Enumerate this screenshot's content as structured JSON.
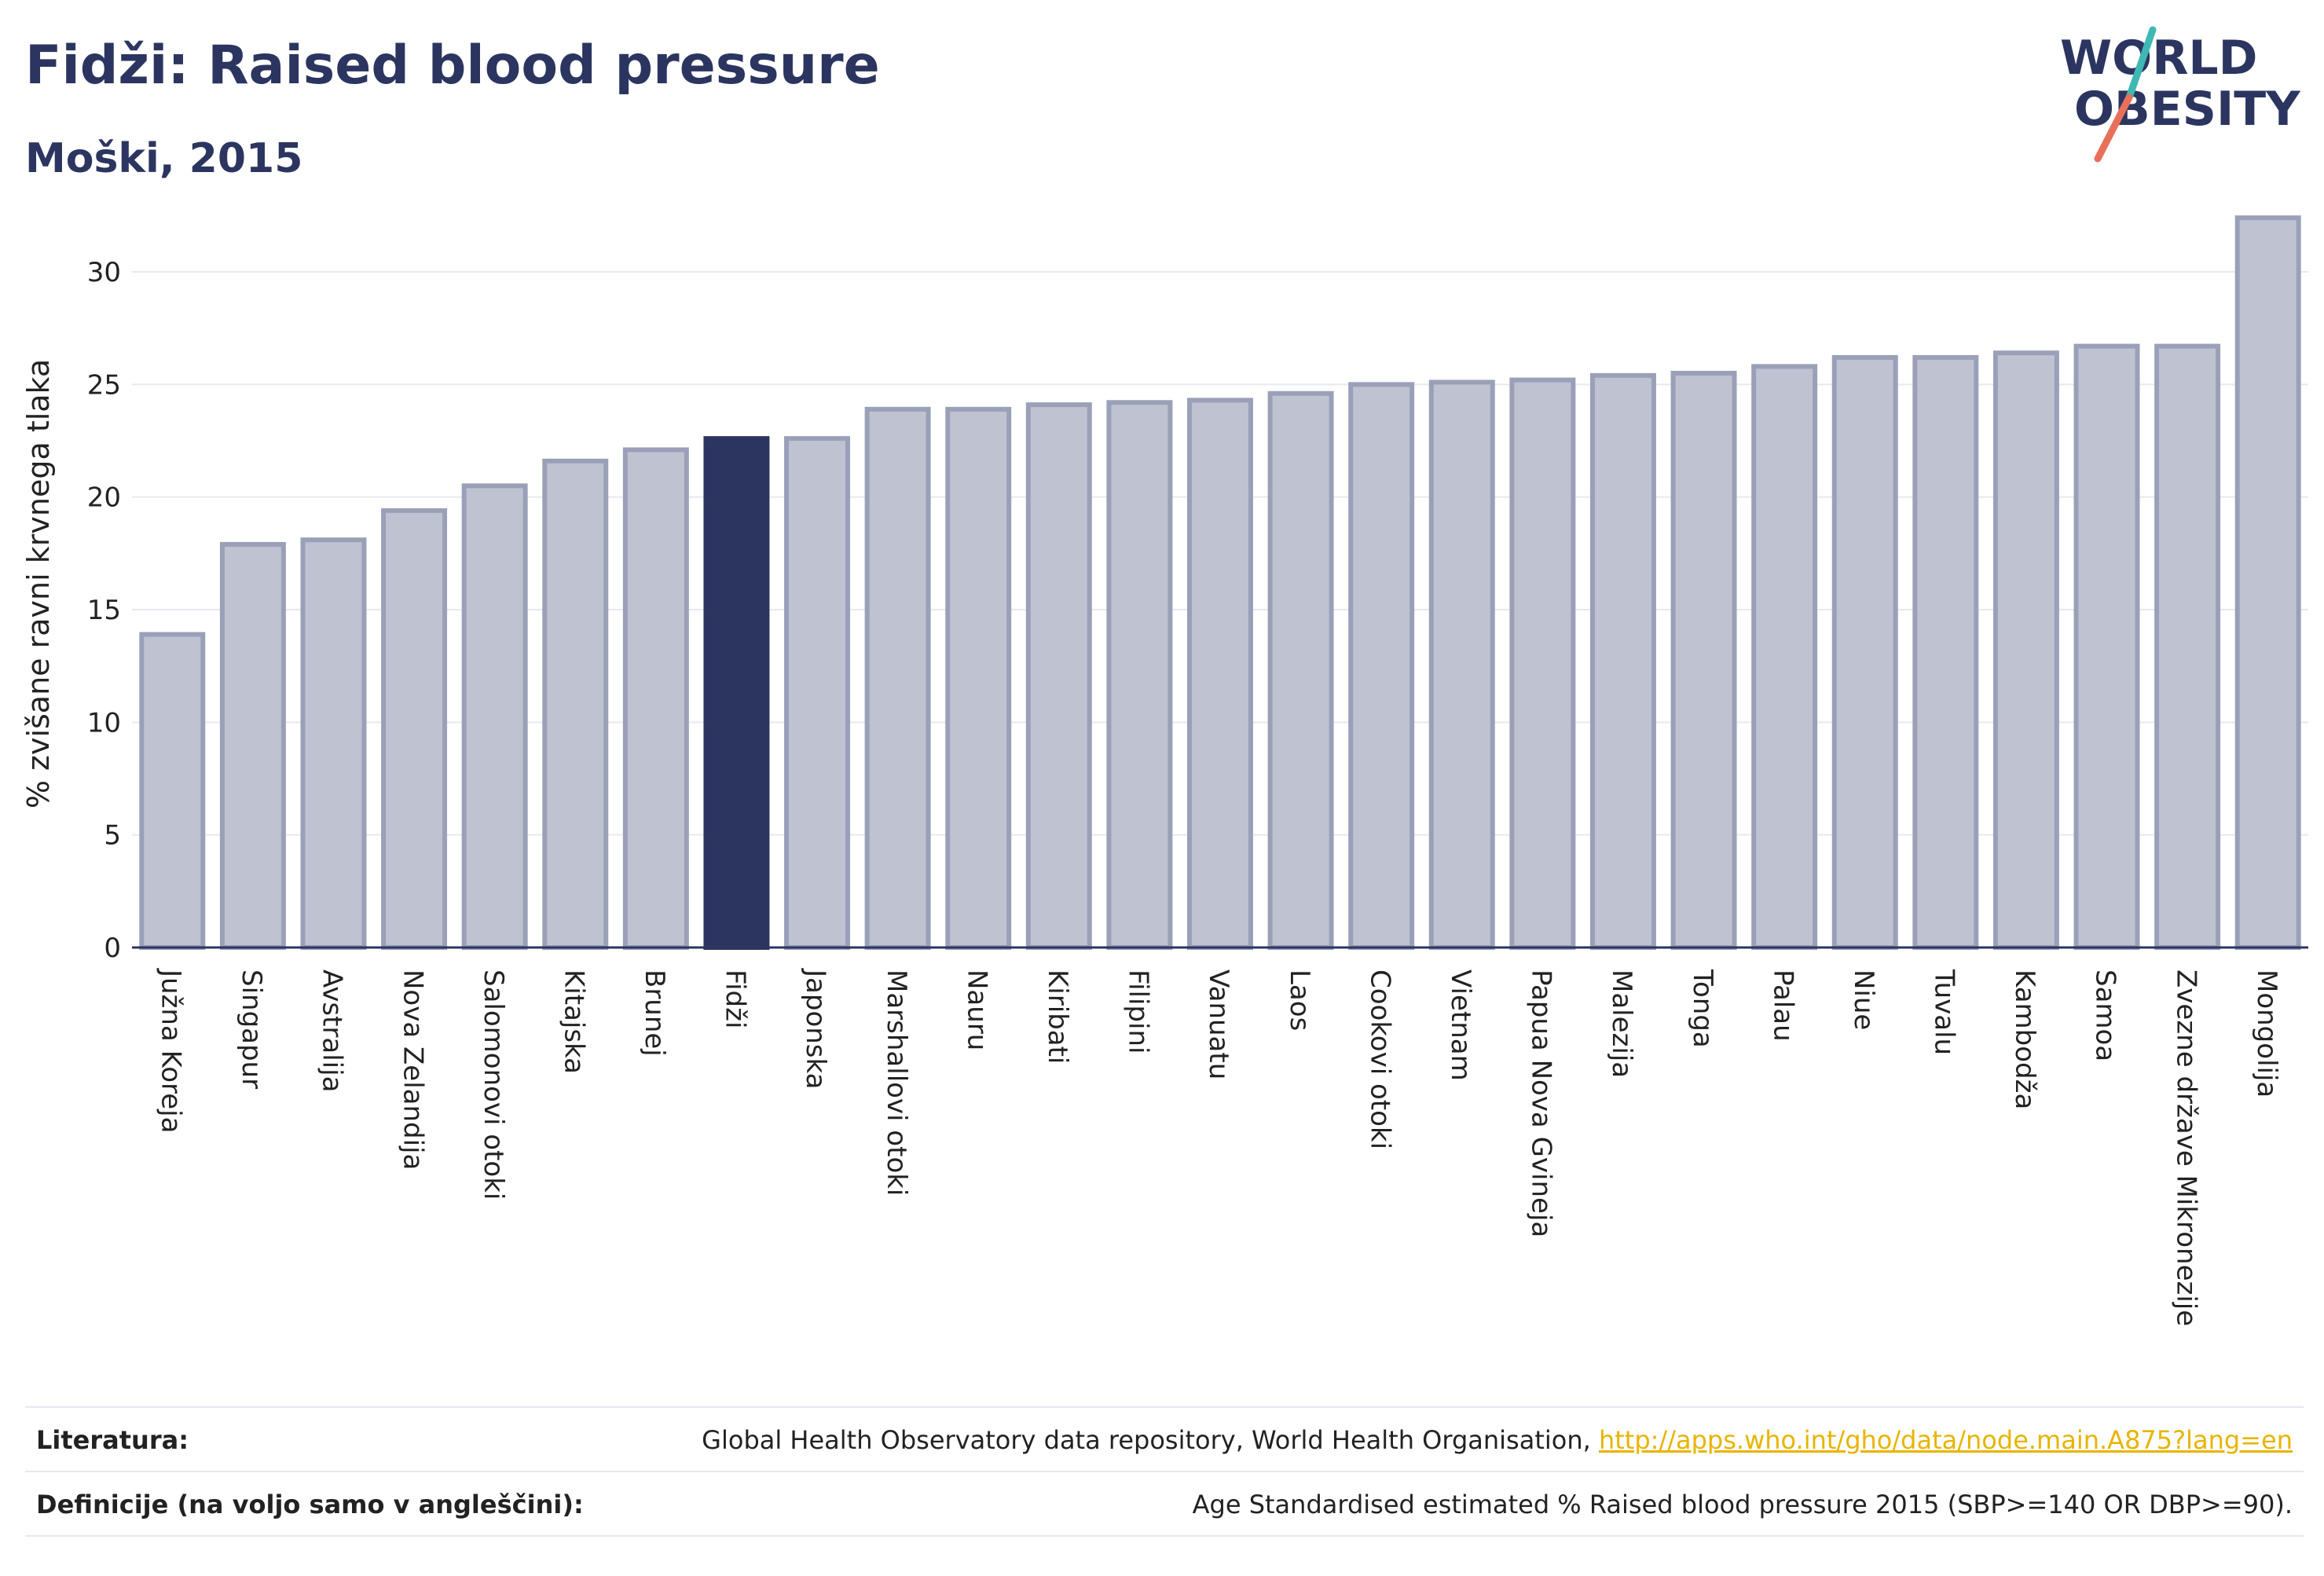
{
  "header": {
    "title": "Fidži: Raised blood pressure",
    "subtitle": "Moški, 2015"
  },
  "logo": {
    "line1": "WORLD",
    "line2": "OBESITY",
    "slash_colors": [
      "#3fb8b3",
      "#e8705a"
    ],
    "text_color": "#2b3560"
  },
  "colors": {
    "bar": "#bfc2d1",
    "bar_border": "#9aa0b8",
    "highlight": "#2b3560",
    "grid": "#e8e9ef",
    "axis": "#2b3560"
  },
  "chart_data": {
    "type": "bar",
    "ylabel": "% zvišane ravni krvnega tlaka",
    "ylim": [
      0,
      33
    ],
    "yticks": [
      0,
      5,
      10,
      15,
      20,
      25,
      30
    ],
    "grid": true,
    "highlight": "Fidži",
    "categories": [
      "Južna Koreja",
      "Singapur",
      "Avstralija",
      "Nova Zelandija",
      "Salomonovi otoki",
      "Kitajska",
      "Brunej",
      "Fidži",
      "Japonska",
      "Marshallovi otoki",
      "Nauru",
      "Kiribati",
      "Filipini",
      "Vanuatu",
      "Laos",
      "Cookovi otoki",
      "Vietnam",
      "Papua Nova Gvineja",
      "Malezija",
      "Tonga",
      "Palau",
      "Niue",
      "Tuvalu",
      "Kambodža",
      "Samoa",
      "Zvezne države Mikronezije",
      "Mongolija"
    ],
    "values": [
      13.9,
      17.9,
      18.1,
      19.4,
      20.5,
      21.6,
      22.1,
      22.6,
      22.6,
      23.9,
      23.9,
      24.1,
      24.2,
      24.3,
      24.6,
      25.0,
      25.1,
      25.2,
      25.4,
      25.5,
      25.8,
      26.2,
      26.2,
      26.4,
      26.7,
      26.7,
      32.4
    ]
  },
  "footer": {
    "literature_label": "Literatura:",
    "literature_text": "Global Health Observatory data repository, World Health Organisation,",
    "literature_link": "http://apps.who.int/gho/data/node.main.A875?lang=en",
    "definitions_label": "Definicije (na voljo samo v angleščini):",
    "definitions_text": "Age Standardised estimated % Raised blood pressure 2015 (SBP>=140 OR DBP>=90)."
  }
}
